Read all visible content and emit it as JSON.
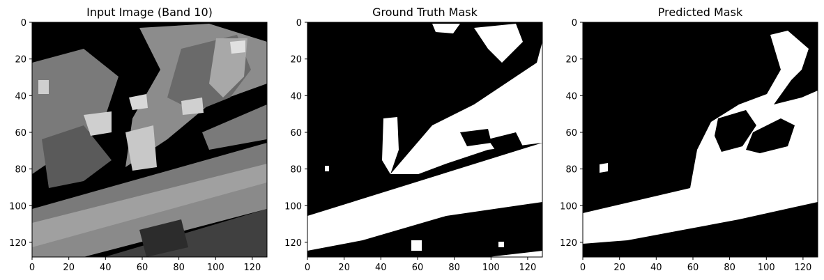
{
  "chart_data": [
    {
      "type": "heatmap",
      "title": "Input Image (Band 10)",
      "image_size": [
        128,
        128
      ],
      "colormap": "gray",
      "xticks": [
        0,
        20,
        40,
        60,
        80,
        100,
        120
      ],
      "yticks": [
        0,
        20,
        40,
        60,
        80,
        100,
        120
      ],
      "xlim": [
        0,
        128
      ],
      "ylim": [
        128,
        0
      ],
      "grid": false
    },
    {
      "type": "heatmap",
      "title": "Ground Truth Mask",
      "image_size": [
        128,
        128
      ],
      "colormap": "gray",
      "values": "binary",
      "xticks": [
        0,
        20,
        40,
        60,
        80,
        100,
        120
      ],
      "yticks": [
        0,
        20,
        40,
        60,
        80,
        100,
        120
      ],
      "xlim": [
        0,
        128
      ],
      "ylim": [
        128,
        0
      ],
      "grid": false
    },
    {
      "type": "heatmap",
      "title": "Predicted Mask",
      "image_size": [
        128,
        128
      ],
      "colormap": "gray",
      "values": "binary",
      "xticks": [
        0,
        20,
        40,
        60,
        80,
        100,
        120
      ],
      "yticks": [
        0,
        20,
        40,
        60,
        80,
        100,
        120
      ],
      "xlim": [
        0,
        128
      ],
      "ylim": [
        128,
        0
      ],
      "grid": false
    }
  ]
}
